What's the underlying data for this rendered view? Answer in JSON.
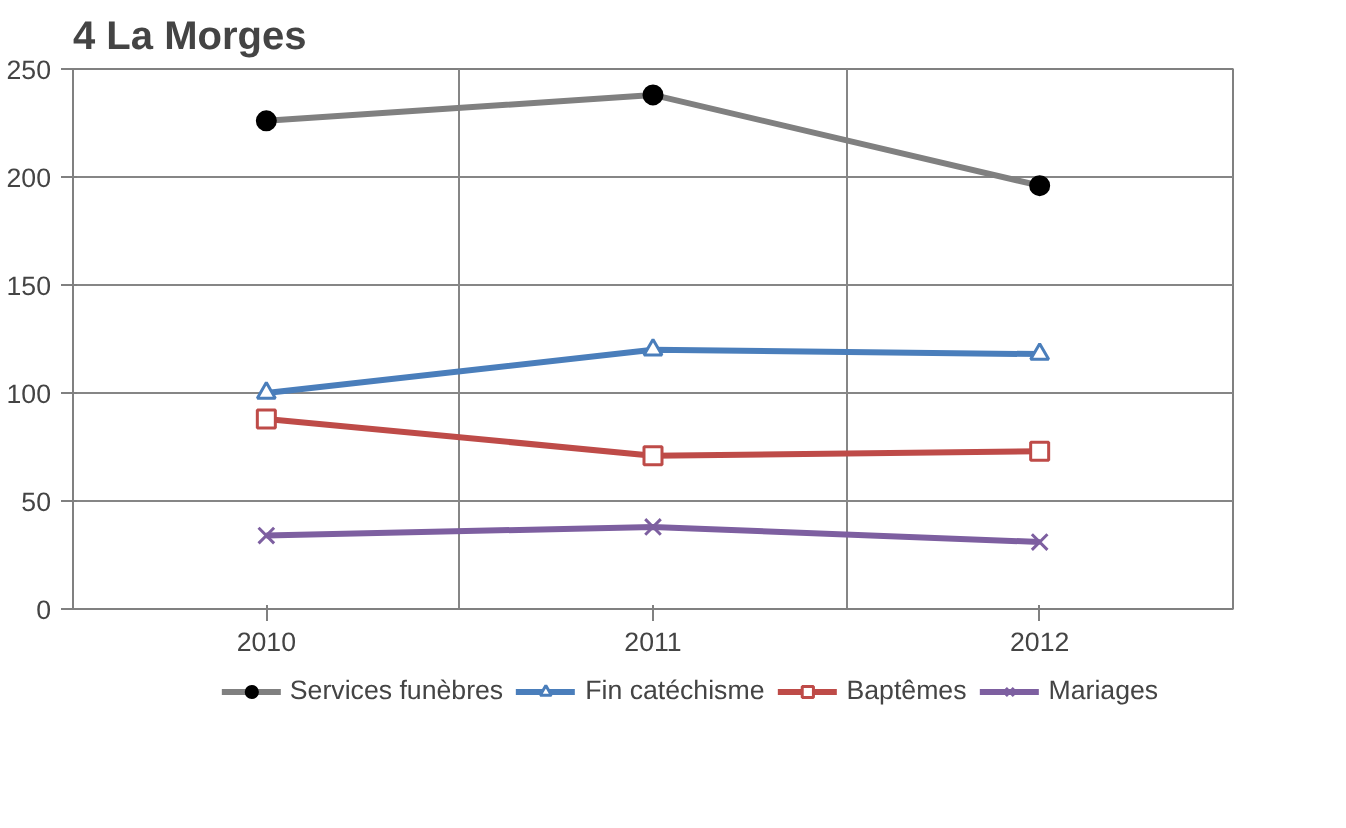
{
  "chart_data": {
    "type": "line",
    "title": "4 La Morges",
    "categories": [
      "2010",
      "2011",
      "2012"
    ],
    "series": [
      {
        "name": "Services funèbres",
        "color": "#808080",
        "marker": "circle",
        "values": [
          226,
          238,
          196
        ]
      },
      {
        "name": "Fin catéchisme",
        "color": "#4a7ebb",
        "marker": "triangle",
        "values": [
          100,
          120,
          118
        ]
      },
      {
        "name": "Baptêmes",
        "color": "#be4b48",
        "marker": "square",
        "values": [
          88,
          71,
          73
        ]
      },
      {
        "name": "Mariages",
        "color": "#7d5fa0",
        "marker": "cross",
        "values": [
          34,
          38,
          31
        ]
      }
    ],
    "ylim": [
      0,
      250
    ],
    "yticks": [
      0,
      50,
      100,
      150,
      200,
      250
    ],
    "grid": true,
    "legend": "bottom",
    "line_style": "solid"
  }
}
